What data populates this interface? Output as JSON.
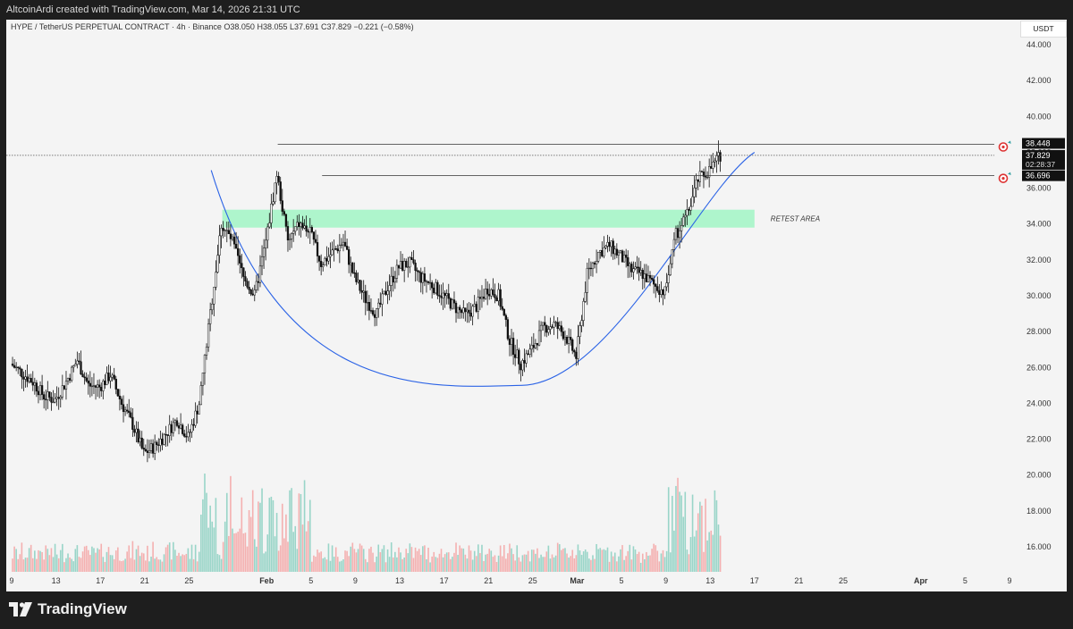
{
  "header": {
    "credit": "AltcoinArdi created with TradingView.com, Mar 14, 2026 21:31 UTC",
    "symbol_line": "HYPE / TetherUS PERPETUAL CONTRACT · 4h · Binance  O38.050  H38.055  L37.691  C37.829  −0.221 (−0.58%)",
    "currency": "USDT"
  },
  "footer": {
    "brand": "TradingView"
  },
  "icons": [
    "tradingview-logo-icon",
    "target-icon"
  ],
  "colors": {
    "candle": "#111111",
    "volume_up": "#8fd2c3",
    "volume_down": "#f4a8a8",
    "zone": "#aef5cc",
    "curve": "#2b63e6",
    "price_label_bg": "#111111"
  },
  "annotations": {
    "zone_label": "RETEST AREA"
  },
  "price_labels": {
    "upper_level": "38.448",
    "last_price": "37.829",
    "countdown": "02:28:37",
    "lower_level": "36.696"
  },
  "chart_data": {
    "type": "candlestick",
    "timeframe": "4h",
    "ylim": [
      14.6,
      45.4
    ],
    "y_ticks": [
      "16.000",
      "18.000",
      "20.000",
      "22.000",
      "24.000",
      "26.000",
      "28.000",
      "30.000",
      "32.000",
      "34.000",
      "36.000",
      "38.000",
      "40.000",
      "42.000",
      "44.000"
    ],
    "x_ticks": [
      "9",
      "13",
      "17",
      "21",
      "25",
      "Feb",
      "5",
      "9",
      "13",
      "17",
      "21",
      "25",
      "Mar",
      "5",
      "9",
      "13",
      "17",
      "21",
      "25",
      "Apr",
      "5",
      "9"
    ],
    "price_path": [
      [
        "Jan 9",
        26.2
      ],
      [
        "Jan 11",
        25.2
      ],
      [
        "Jan 12",
        24.4
      ],
      [
        "Jan 13",
        24.2
      ],
      [
        "Jan 14",
        25.2
      ],
      [
        "Jan 15",
        26.4
      ],
      [
        "Jan 16",
        25.0
      ],
      [
        "Jan 17",
        24.9
      ],
      [
        "Jan 18",
        25.6
      ],
      [
        "Jan 19",
        24.0
      ],
      [
        "Jan 20",
        22.8
      ],
      [
        "Jan 21",
        21.2
      ],
      [
        "Jan 22",
        21.6
      ],
      [
        "Jan 23",
        22.3
      ],
      [
        "Jan 24",
        23.1
      ],
      [
        "Jan 25",
        22.1
      ],
      [
        "Jan 26",
        24.0
      ],
      [
        "Jan 27",
        29.0
      ],
      [
        "Jan 28",
        34.0
      ],
      [
        "Jan 29",
        33.0
      ],
      [
        "Jan 30",
        31.0
      ],
      [
        "Jan 31",
        30.0
      ],
      [
        "Feb 1",
        33.0
      ],
      [
        "Feb 2",
        36.8
      ],
      [
        "Feb 3",
        33.0
      ],
      [
        "Feb 4",
        34.0
      ],
      [
        "Feb 5",
        33.5
      ],
      [
        "Feb 6",
        31.8
      ],
      [
        "Feb 7",
        32.4
      ],
      [
        "Feb 8",
        33.0
      ],
      [
        "Feb 9",
        31.0
      ],
      [
        "Feb 10",
        29.8
      ],
      [
        "Feb 11",
        29.0
      ],
      [
        "Feb 12",
        30.5
      ],
      [
        "Feb 13",
        31.6
      ],
      [
        "Feb 14",
        31.8
      ],
      [
        "Feb 15",
        31.0
      ],
      [
        "Feb 16",
        30.6
      ],
      [
        "Feb 17",
        30.0
      ],
      [
        "Feb 18",
        29.4
      ],
      [
        "Feb 19",
        28.9
      ],
      [
        "Feb 20",
        29.4
      ],
      [
        "Feb 21",
        30.4
      ],
      [
        "Feb 22",
        30.0
      ],
      [
        "Feb 23",
        27.5
      ],
      [
        "Feb 24",
        26.2
      ],
      [
        "Feb 25",
        27.0
      ],
      [
        "Feb 26",
        28.2
      ],
      [
        "Feb 27",
        28.4
      ],
      [
        "Feb 28",
        27.8
      ],
      [
        "Mar 1",
        26.6
      ],
      [
        "Mar 2",
        31.2
      ],
      [
        "Mar 3",
        32.4
      ],
      [
        "Mar 4",
        32.8
      ],
      [
        "Mar 5",
        32.2
      ],
      [
        "Mar 6",
        31.4
      ],
      [
        "Mar 7",
        31.2
      ],
      [
        "Mar 8",
        30.6
      ],
      [
        "Mar 9",
        30.2
      ],
      [
        "Mar 10",
        33.4
      ],
      [
        "Mar 11",
        34.5
      ],
      [
        "Mar 12",
        36.5
      ],
      [
        "Mar 13",
        37.0
      ],
      [
        "Mar 14",
        37.829
      ]
    ],
    "ohlc_last": {
      "open": 38.05,
      "high": 38.055,
      "low": 37.691,
      "close": 37.829,
      "change": -0.221,
      "change_pct": -0.58
    },
    "levels": [
      {
        "name": "upper_level",
        "price": 38.448,
        "from": "Feb 2"
      },
      {
        "name": "last_price",
        "price": 37.829
      },
      {
        "name": "lower_level",
        "price": 36.696,
        "from": "Feb 6"
      }
    ],
    "zone": {
      "label": "RETEST AREA",
      "low": 33.8,
      "high": 34.8,
      "from": "Jan 28",
      "to": "Mar 17"
    },
    "curve": {
      "kind": "rounding_bottom",
      "start": [
        "Jan 27",
        37.0
      ],
      "bottom": [
        "Feb 24",
        25.0
      ],
      "end": [
        "Mar 17",
        38.0
      ]
    },
    "volume": {
      "scale": "relative",
      "note_levels": {
        "max": 1.0,
        "typical": 0.18
      }
    }
  }
}
